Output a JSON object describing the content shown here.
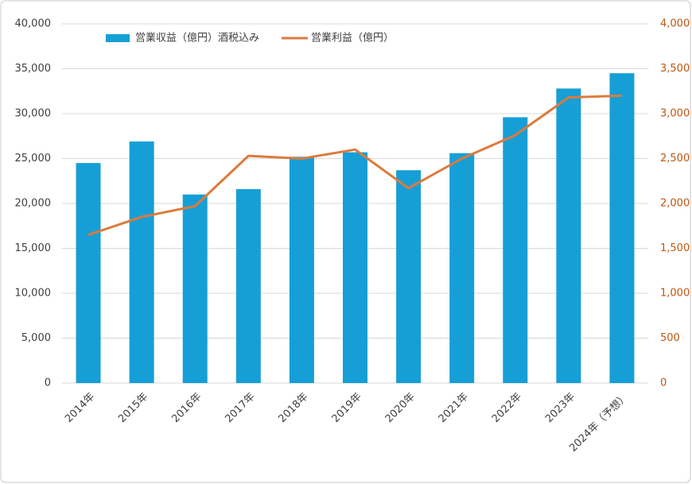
{
  "chart_data": {
    "type": "bar-line",
    "categories": [
      "2014年",
      "2015年",
      "2016年",
      "2017年",
      "2018年",
      "2019年",
      "2020年",
      "2021年",
      "2022年",
      "2023年",
      "2024年（予想）"
    ],
    "series": [
      {
        "name": "営業収益（億円）酒税込み",
        "type": "bar",
        "color": "#169fd6",
        "values": [
          24500,
          26900,
          21000,
          21600,
          25200,
          25700,
          23700,
          25600,
          29600,
          32800,
          34500
        ]
      },
      {
        "name": "営業利益（億円）",
        "type": "line",
        "axis": "y2",
        "color": "#dd7a3c",
        "values": [
          1650,
          1850,
          1970,
          2530,
          2500,
          2600,
          2170,
          2500,
          2760,
          3180,
          3200
        ]
      }
    ],
    "ylim": [
      0,
      40000
    ],
    "yticks": [
      0,
      {
        "value": 5000,
        "label": "5,000"
      },
      {
        "value": 10000,
        "label": "10,000"
      },
      {
        "value": 15000,
        "label": "15,000"
      },
      {
        "value": 20000,
        "label": "20,000"
      },
      {
        "value": 25000,
        "label": "25,000"
      },
      {
        "value": 30000,
        "label": "30,000"
      },
      {
        "value": 35000,
        "label": "35,000"
      },
      {
        "value": 40000,
        "label": "40,000"
      }
    ],
    "y2lim": [
      0,
      4000
    ],
    "y2ticks": [
      0,
      500,
      {
        "value": 1000,
        "label": "1,000"
      },
      {
        "value": 1500,
        "label": "1,500"
      },
      {
        "value": 2000,
        "label": "2,000"
      },
      {
        "value": 2500,
        "label": "2,500"
      },
      {
        "value": 3000,
        "label": "3,000"
      },
      {
        "value": 3500,
        "label": "3,500"
      },
      {
        "value": 4000,
        "label": "4,000"
      }
    ],
    "grid": true,
    "legend": "top"
  }
}
